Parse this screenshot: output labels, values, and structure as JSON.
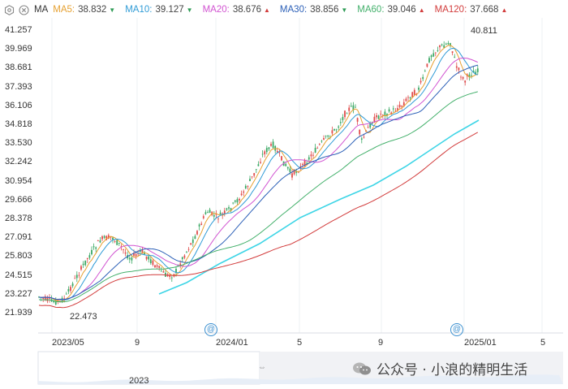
{
  "legend": {
    "settings_icon": "hexagon-gear-icon",
    "close_icon": "circle-x-icon",
    "label": "MA",
    "items": [
      {
        "name": "MA5:",
        "value": "38.832",
        "dir": "down",
        "color": "#e6a030"
      },
      {
        "name": "MA10:",
        "value": "39.127",
        "dir": "down",
        "color": "#2f9bd6"
      },
      {
        "name": "MA20:",
        "value": "38.676",
        "dir": "up",
        "color": "#d154d1"
      },
      {
        "name": "MA30:",
        "value": "38.856",
        "dir": "down",
        "color": "#2b5fb7"
      },
      {
        "name": "MA60:",
        "value": "39.046",
        "dir": "up",
        "color": "#43b06b"
      },
      {
        "name": "MA120:",
        "value": "37.668",
        "dir": "up",
        "color": "#d23c3c"
      }
    ]
  },
  "y_axis": {
    "ticks": [
      "41.257",
      "39.969",
      "38.681",
      "37.393",
      "36.106",
      "34.818",
      "33.530",
      "32.242",
      "30.954",
      "29.666",
      "28.378",
      "27.091",
      "25.803",
      "24.515",
      "23.227",
      "21.939"
    ]
  },
  "x_axis": {
    "labels": [
      "2023/05",
      "9",
      "2024/01",
      "5",
      "9",
      "2025/01",
      "5"
    ]
  },
  "annotations": {
    "high": "40.811",
    "low": "22.473"
  },
  "event_markers": [
    "@",
    "@"
  ],
  "navigator": {
    "year_label": "2023",
    "handle_glyph": "⇔"
  },
  "watermark": {
    "text": "公众号 · 小浪的精明生活",
    "icon": "wechat-icon"
  },
  "colors": {
    "up_candle": "#e04b4b",
    "down_candle": "#3aa864",
    "cyan_line": "#3ed5e6"
  },
  "chart_data": {
    "type": "line",
    "title": "",
    "ylim": [
      21.939,
      41.257
    ],
    "series": [
      {
        "name": "MA5",
        "values": []
      },
      {
        "name": "MA120",
        "values": []
      }
    ]
  }
}
